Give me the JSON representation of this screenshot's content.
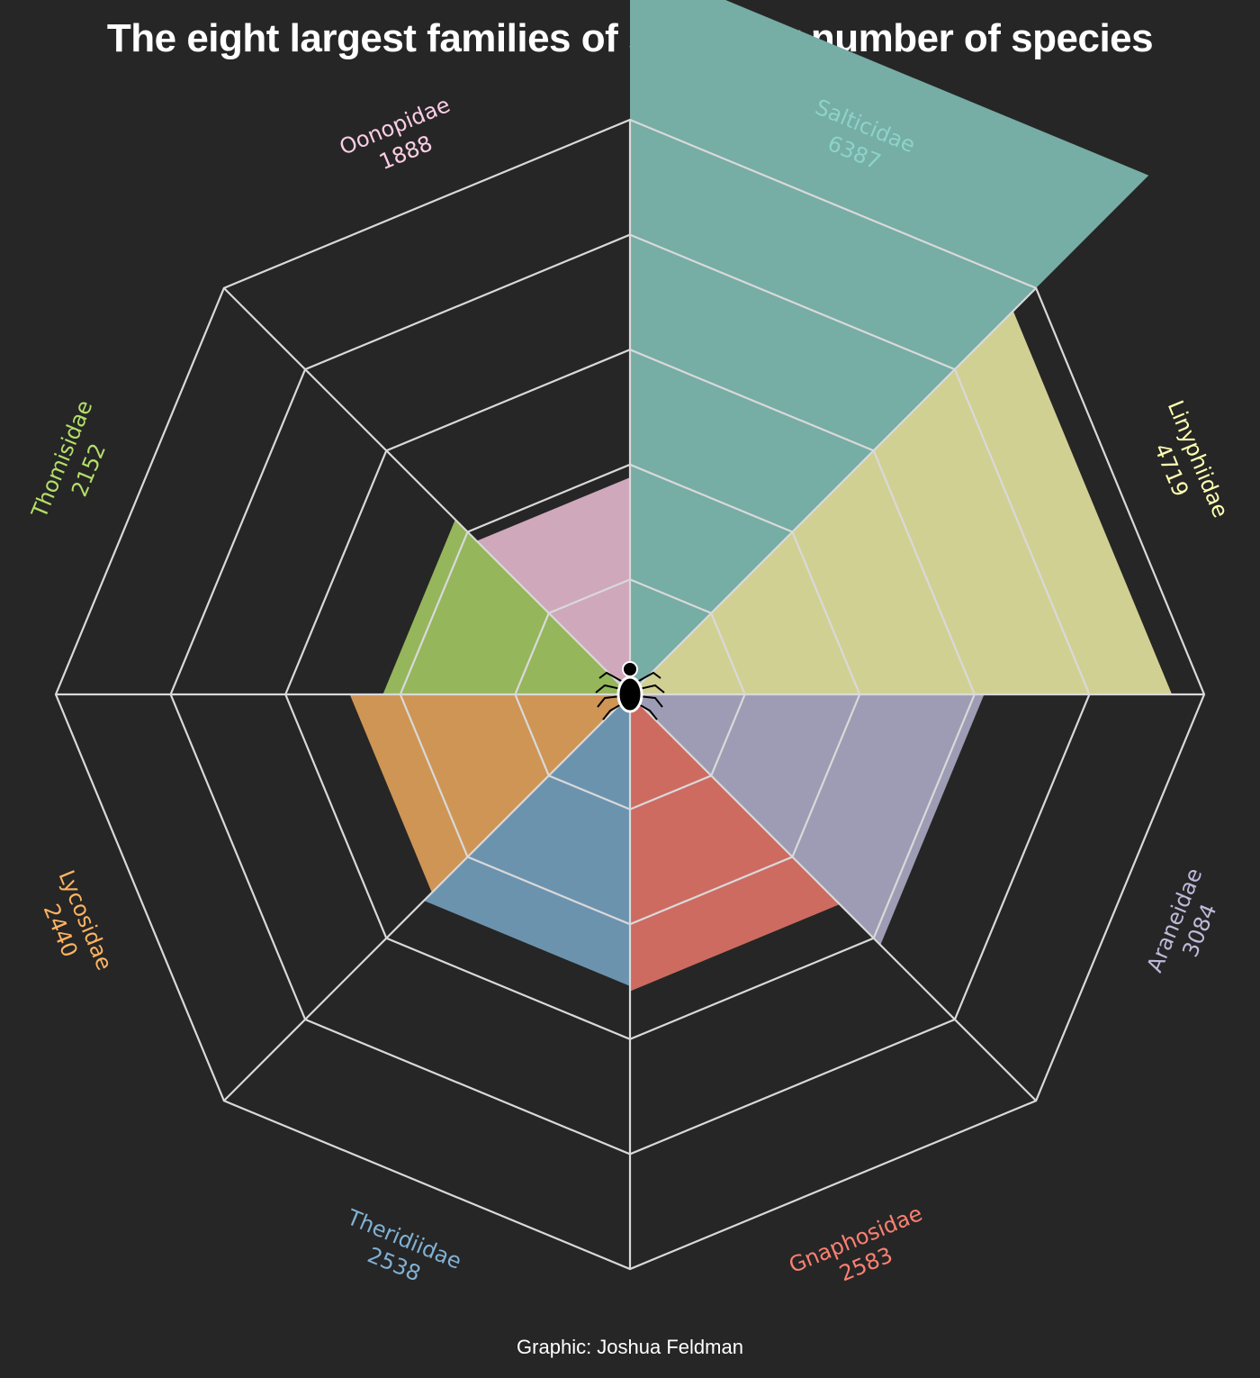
{
  "title": "The eight largest families of spider by number of species",
  "credit": "Graphic: Joshua Feldman",
  "center_icon": "spider-icon",
  "chart_data": {
    "type": "radial-wedge",
    "title": "The eight largest families of spider by number of species",
    "rings": [
      1000,
      2000,
      3000,
      4000,
      5000
    ],
    "max": 5000,
    "grid_color": "#d9d9d9",
    "background": "#262626",
    "series": [
      {
        "name": "Salticidae",
        "value": 6387,
        "color": "#76ada5",
        "label_color": "#8dd3c7"
      },
      {
        "name": "Linyphiidae",
        "value": 4719,
        "color": "#d1d093",
        "label_color": "#ffffb3"
      },
      {
        "name": "Araneidae",
        "value": 3084,
        "color": "#9e9cb4",
        "label_color": "#bebada"
      },
      {
        "name": "Gnaphosidae",
        "value": 2583,
        "color": "#cd6b61",
        "label_color": "#fb8072"
      },
      {
        "name": "Theridiidae",
        "value": 2538,
        "color": "#6c93ae",
        "label_color": "#80b1d3"
      },
      {
        "name": "Lycosidae",
        "value": 2440,
        "color": "#cf9555",
        "label_color": "#fdb462"
      },
      {
        "name": "Thomisidae",
        "value": 2152,
        "color": "#95b65b",
        "label_color": "#b3de69"
      },
      {
        "name": "Oonopidae",
        "value": 1888,
        "color": "#cfa8bc",
        "label_color": "#fccde5"
      }
    ]
  }
}
